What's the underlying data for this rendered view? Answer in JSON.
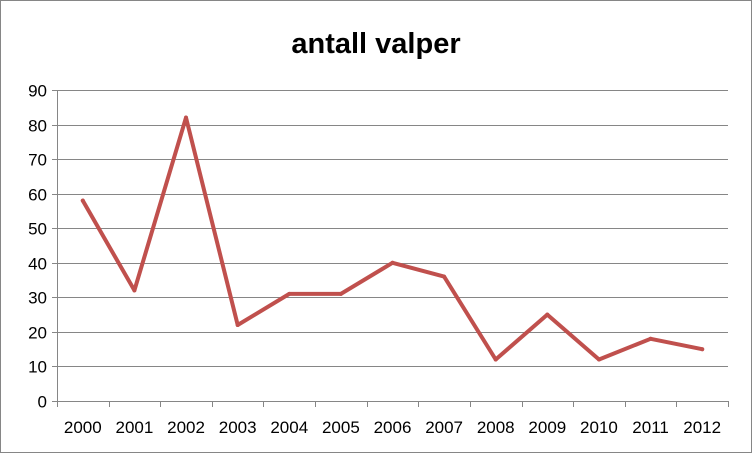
{
  "chart_data": {
    "type": "line",
    "title": "antall valper",
    "xlabel": "",
    "ylabel": "",
    "categories": [
      "2000",
      "2001",
      "2002",
      "2003",
      "2004",
      "2005",
      "2006",
      "2007",
      "2008",
      "2009",
      "2010",
      "2011",
      "2012"
    ],
    "series": [
      {
        "values": [
          58,
          32,
          82,
          22,
          31,
          31,
          40,
          36,
          12,
          25,
          12,
          18,
          15
        ],
        "color": "#C0504D"
      }
    ],
    "ylim": [
      0,
      90
    ],
    "yticks": [
      "0",
      "10",
      "20",
      "30",
      "40",
      "50",
      "60",
      "70",
      "80",
      "90"
    ],
    "grid": true,
    "legend": "none",
    "colors": {
      "gridline": "#868686",
      "axis": "#868686",
      "line": "#C0504D"
    }
  }
}
